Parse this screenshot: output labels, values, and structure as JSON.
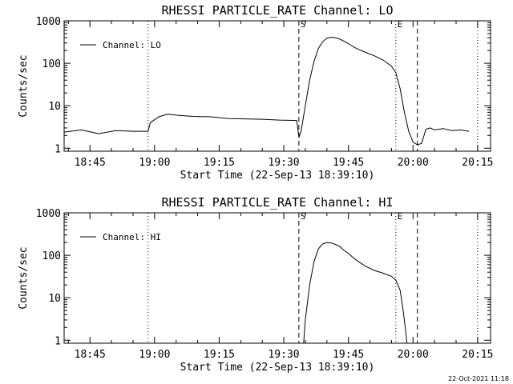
{
  "timestamp": "22-Oct-2021 11:18",
  "chart_data": [
    {
      "type": "line",
      "title": "RHESSI PARTICLE_RATE Channel: LO",
      "ylabel": "Counts/sec",
      "xlabel": "Start Time (22-Sep-13 18:39:10)",
      "y_scale": "log",
      "ylim": [
        0.85,
        1000
      ],
      "xlim_min": [
        0,
        99
      ],
      "x_ticks": [
        {
          "min": 6,
          "label": "18:45"
        },
        {
          "min": 21,
          "label": "19:00"
        },
        {
          "min": 36,
          "label": "19:15"
        },
        {
          "min": 51,
          "label": "19:30"
        },
        {
          "min": 66,
          "label": "19:45"
        },
        {
          "min": 81,
          "label": "20:00"
        },
        {
          "min": 96,
          "label": "20:15"
        }
      ],
      "y_ticks": [
        {
          "value": 1,
          "label": "1"
        },
        {
          "value": 10,
          "label": "10"
        },
        {
          "value": 100,
          "label": "100"
        },
        {
          "value": 1000,
          "label": "1000"
        }
      ],
      "legend": {
        "label": "Channel: LO",
        "position": "top-left"
      },
      "markers": [
        {
          "min": 19.5,
          "style": "dotted",
          "label": ""
        },
        {
          "min": 54.5,
          "style": "dashed",
          "label": "S"
        },
        {
          "min": 77.0,
          "style": "dotted",
          "label": "E"
        },
        {
          "min": 82.0,
          "style": "dashed",
          "label": ""
        },
        {
          "min": 96.0,
          "style": "dotted",
          "label": ""
        }
      ],
      "series": [
        {
          "name": "Channel: LO",
          "x": [
            0,
            4,
            8,
            12,
            16,
            19.5,
            20,
            22,
            24,
            26,
            28,
            30,
            34,
            38,
            42,
            46,
            50,
            54,
            54.5,
            55,
            56,
            57,
            58,
            59,
            60,
            61,
            62,
            63,
            64,
            65,
            66,
            67,
            68,
            70,
            72,
            74,
            76,
            77,
            78,
            79,
            80,
            81,
            82,
            83,
            84,
            85,
            86,
            88,
            90,
            92,
            94
          ],
          "y": [
            2.4,
            2.7,
            2.2,
            2.6,
            2.5,
            2.5,
            4.0,
            5.5,
            6.3,
            6.0,
            5.8,
            5.6,
            5.5,
            5.0,
            4.9,
            4.8,
            4.6,
            4.5,
            1.8,
            2.5,
            10,
            40,
            110,
            220,
            320,
            390,
            410,
            400,
            370,
            330,
            290,
            250,
            220,
            180,
            150,
            120,
            85,
            60,
            25,
            7,
            2.5,
            1.4,
            1.2,
            1.3,
            2.8,
            3.0,
            2.7,
            2.9,
            2.6,
            2.7,
            2.5
          ]
        }
      ]
    },
    {
      "type": "line",
      "title": "RHESSI PARTICLE_RATE Channel: HI",
      "ylabel": "Counts/sec",
      "xlabel": "Start Time (22-Sep-13 18:39:10)",
      "y_scale": "log",
      "ylim": [
        0.85,
        1000
      ],
      "xlim_min": [
        0,
        99
      ],
      "x_ticks": [
        {
          "min": 6,
          "label": "18:45"
        },
        {
          "min": 21,
          "label": "19:00"
        },
        {
          "min": 36,
          "label": "19:15"
        },
        {
          "min": 51,
          "label": "19:30"
        },
        {
          "min": 66,
          "label": "19:45"
        },
        {
          "min": 81,
          "label": "20:00"
        },
        {
          "min": 96,
          "label": "20:15"
        }
      ],
      "y_ticks": [
        {
          "value": 1,
          "label": "1"
        },
        {
          "value": 10,
          "label": "10"
        },
        {
          "value": 100,
          "label": "100"
        },
        {
          "value": 1000,
          "label": "1000"
        }
      ],
      "legend": {
        "label": "Channel: HI",
        "position": "top-left"
      },
      "markers": [
        {
          "min": 19.5,
          "style": "dotted",
          "label": ""
        },
        {
          "min": 54.5,
          "style": "dashed",
          "label": "S"
        },
        {
          "min": 77.0,
          "style": "dotted",
          "label": "E"
        },
        {
          "min": 82.0,
          "style": "dashed",
          "label": ""
        },
        {
          "min": 96.0,
          "style": "dotted",
          "label": ""
        }
      ],
      "series": [
        {
          "name": "Channel: HI",
          "x": [
            55.6,
            56,
            57,
            58,
            59,
            60,
            61,
            62,
            63,
            64,
            65,
            66,
            67,
            68,
            70,
            72,
            74,
            76,
            77,
            78,
            78.6,
            79.2,
            79.6
          ],
          "y": [
            0.85,
            3,
            20,
            70,
            140,
            185,
            200,
            195,
            180,
            160,
            130,
            110,
            90,
            75,
            55,
            44,
            38,
            32,
            26,
            15,
            6,
            2,
            0.85
          ]
        }
      ]
    }
  ]
}
